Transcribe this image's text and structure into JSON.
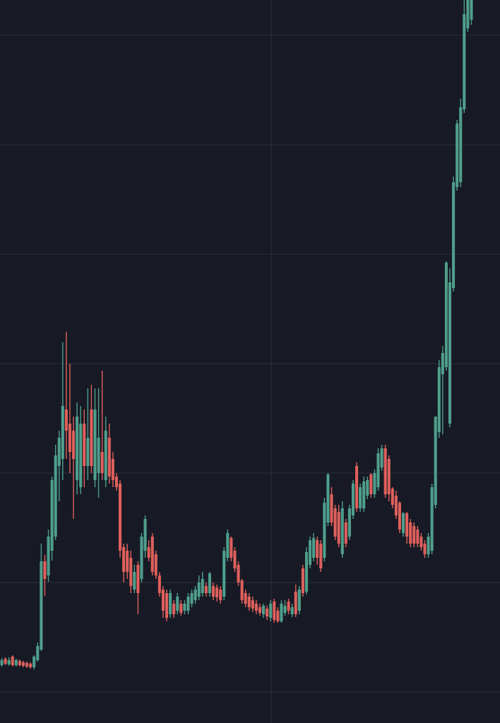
{
  "chart_data": {
    "type": "candlestick",
    "up_color": "#4f9f8b",
    "down_color": "#df605c",
    "background": "#171a25",
    "grid_color": "#2b2f3b",
    "grid": true,
    "ylim": [
      0,
      1024
    ],
    "yticks": [
      44,
      199,
      354,
      509,
      664,
      819,
      974
    ],
    "open": [
      82,
      91,
      83,
      94,
      82,
      88,
      86,
      85,
      84,
      79,
      89,
      104,
      229,
      209,
      244,
      264,
      364,
      374,
      444,
      424,
      414,
      344,
      334,
      424,
      364,
      444,
      344,
      354,
      384,
      344,
      404,
      374,
      349,
      339,
      249,
      244,
      234,
      189,
      224,
      204,
      244,
      249,
      264,
      239,
      209,
      189,
      184,
      154,
      169,
      159,
      169,
      159,
      159,
      169,
      174,
      179,
      184,
      194,
      184,
      194,
      192,
      189,
      179,
      234,
      262,
      244,
      224,
      202,
      184,
      179,
      174,
      169,
      164,
      154,
      162,
      149,
      172,
      159,
      144,
      156,
      172,
      154,
      186,
      159,
      219,
      186,
      224,
      234,
      259,
      254,
      234,
      284,
      324,
      304,
      299,
      239,
      284,
      264,
      294,
      364,
      304,
      304,
      322,
      352,
      324,
      334,
      362,
      389,
      374,
      332,
      322,
      312,
      269,
      297,
      284,
      279,
      274,
      264,
      254,
      239,
      244,
      309,
      412,
      494,
      504,
      424,
      616,
      759,
      766,
      869,
      984,
      996
    ],
    "high": [
      92,
      93,
      93,
      96,
      91,
      90,
      88,
      87,
      86,
      96,
      114,
      254,
      238,
      274,
      349,
      394,
      414,
      539,
      554,
      509,
      434,
      454,
      449,
      444,
      474,
      479,
      474,
      474,
      499,
      434,
      424,
      384,
      354,
      344,
      254,
      254,
      244,
      224,
      229,
      269,
      294,
      259,
      269,
      244,
      214,
      194,
      189,
      189,
      174,
      184,
      174,
      174,
      184,
      189,
      194,
      209,
      214,
      199,
      214,
      199,
      196,
      194,
      249,
      274,
      264,
      249,
      229,
      204,
      189,
      184,
      179,
      174,
      169,
      169,
      166,
      174,
      176,
      164,
      174,
      174,
      176,
      169,
      196,
      194,
      224,
      249,
      264,
      269,
      264,
      259,
      319,
      354,
      334,
      309,
      309,
      314,
      289,
      309,
      344,
      369,
      339,
      349,
      349,
      354,
      359,
      389,
      394,
      394,
      379,
      334,
      329,
      314,
      299,
      299,
      289,
      284,
      279,
      269,
      259,
      269,
      339,
      434,
      514,
      534,
      654,
      644,
      774,
      854,
      884,
      1024,
      1024,
      1024
    ],
    "low": [
      80,
      82,
      81,
      80,
      80,
      80,
      79,
      78,
      77,
      76,
      87,
      102,
      180,
      200,
      230,
      259,
      314,
      344,
      374,
      354,
      289,
      324,
      324,
      334,
      344,
      354,
      334,
      319,
      344,
      334,
      339,
      334,
      329,
      234,
      199,
      204,
      184,
      184,
      154,
      199,
      234,
      229,
      209,
      204,
      179,
      149,
      144,
      149,
      149,
      154,
      152,
      154,
      154,
      164,
      169,
      174,
      179,
      179,
      179,
      174,
      172,
      169,
      174,
      229,
      229,
      214,
      194,
      169,
      164,
      159,
      157,
      154,
      152,
      149,
      146,
      144,
      142,
      142,
      142,
      152,
      154,
      150,
      150,
      154,
      179,
      182,
      219,
      229,
      224,
      214,
      229,
      279,
      279,
      259,
      249,
      234,
      249,
      259,
      289,
      299,
      299,
      299,
      317,
      319,
      319,
      329,
      357,
      319,
      314,
      304,
      289,
      269,
      264,
      254,
      249,
      249,
      249,
      244,
      234,
      234,
      239,
      304,
      404,
      409,
      499,
      419,
      611,
      754,
      759,
      864,
      979,
      989
    ],
    "close": [
      89,
      84,
      89,
      82,
      89,
      82,
      81,
      80,
      79,
      94,
      109,
      229,
      204,
      264,
      344,
      379,
      404,
      449,
      414,
      384,
      374,
      434,
      424,
      364,
      404,
      364,
      444,
      404,
      354,
      414,
      349,
      344,
      334,
      244,
      214,
      214,
      194,
      214,
      184,
      264,
      289,
      234,
      214,
      209,
      184,
      159,
      149,
      184,
      154,
      179,
      156,
      169,
      179,
      184,
      189,
      199,
      204,
      184,
      212,
      179,
      178,
      174,
      244,
      269,
      234,
      219,
      199,
      174,
      169,
      164,
      162,
      159,
      156,
      166,
      151,
      169,
      146,
      144,
      169,
      166,
      159,
      164,
      154,
      189,
      184,
      242,
      259,
      262,
      234,
      219,
      312,
      352,
      284,
      264,
      254,
      304,
      254,
      304,
      339,
      304,
      334,
      342,
      344,
      324,
      354,
      382,
      389,
      324,
      324,
      309,
      294,
      274,
      297,
      264,
      254,
      254,
      254,
      249,
      239,
      264,
      334,
      434,
      504,
      524,
      652,
      624,
      766,
      849,
      872,
      1004,
      1024,
      1024
    ]
  }
}
